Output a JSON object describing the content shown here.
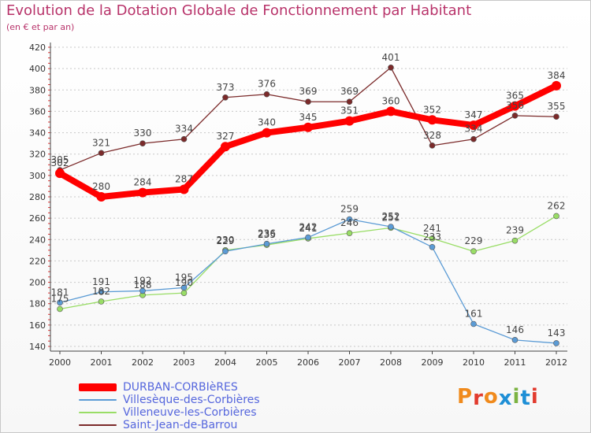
{
  "header": {
    "title": "Evolution de la Dotation Globale de Fonctionnement par Habitant",
    "subtitle": "(en € et par an)"
  },
  "logo": {
    "text": "Proxiti",
    "colors": [
      "#f08a1c",
      "#e23b2e",
      "#f08a1c",
      "#1e8fd6",
      "#7cb342",
      "#1e8fd6",
      "#e23b2e"
    ]
  },
  "chart_data": {
    "type": "line",
    "x": [
      2000,
      2001,
      2002,
      2003,
      2004,
      2005,
      2006,
      2007,
      2008,
      2009,
      2010,
      2011,
      2012
    ],
    "ylim": [
      140,
      420
    ],
    "yticks": [
      140,
      160,
      180,
      200,
      220,
      240,
      260,
      280,
      300,
      320,
      340,
      360,
      380,
      400,
      420
    ],
    "grid": "horizontal-dashed",
    "legend_placement": "bottom-left",
    "series": [
      {
        "name": "DURBAN-CORBIèRES",
        "color": "#ff0000",
        "values": [
          302,
          280,
          284,
          287,
          327,
          340,
          345,
          351,
          360,
          352,
          347,
          365,
          384
        ]
      },
      {
        "name": "Villesèque-des-Corbières",
        "color": "#5b9bd5",
        "values": [
          181,
          191,
          192,
          195,
          229,
          236,
          242,
          259,
          252,
          233,
          161,
          146,
          143
        ]
      },
      {
        "name": "Villeneuve-les-Corbières",
        "color": "#99dd66",
        "values": [
          175,
          182,
          188,
          190,
          230,
          235,
          241,
          246,
          251,
          241,
          229,
          239,
          262
        ]
      },
      {
        "name": "Saint-Jean-de-Barrou",
        "color": "#7b2a2a",
        "values": [
          305,
          321,
          330,
          334,
          373,
          376,
          369,
          369,
          401,
          328,
          334,
          356,
          355
        ]
      }
    ]
  }
}
